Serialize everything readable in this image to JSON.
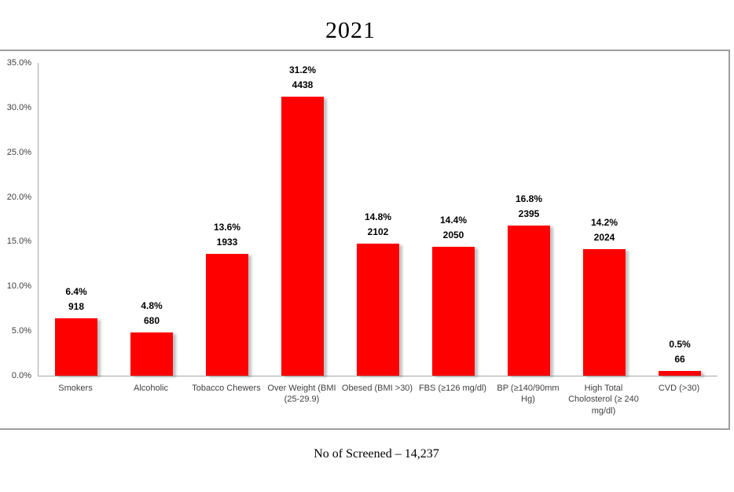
{
  "page": {
    "title": "2021",
    "footer": "No of Screened – 14,237"
  },
  "chart_data": {
    "type": "bar",
    "title": "2021",
    "categories": [
      "Smokers",
      "Alcoholic",
      "Tobacco Chewers",
      "Over Weight (BMI (25-29.9)",
      "Obesed (BMI >30)",
      "FBS (≥126 mg/dl)",
      "BP (≥140/90mm Hg)",
      "High Total Cholosterol (≥ 240 mg/dl)",
      "CVD (>30)"
    ],
    "values": [
      6.4,
      4.8,
      13.6,
      31.2,
      14.8,
      14.4,
      16.8,
      14.2,
      0.5
    ],
    "value_labels": [
      "6.4%",
      "4.8%",
      "13.6%",
      "31.2%",
      "14.8%",
      "14.4%",
      "16.8%",
      "14.2%",
      "0.5%"
    ],
    "counts": [
      "918",
      "680",
      "1933",
      "4438",
      "2102",
      "2050",
      "2395",
      "2024",
      "66"
    ],
    "series": [
      {
        "name": "2021",
        "values": [
          6.4,
          4.8,
          13.6,
          31.2,
          14.8,
          14.4,
          16.8,
          14.2,
          0.5
        ]
      }
    ],
    "ylim": [
      0,
      35
    ],
    "ytick_step": 5,
    "ytick_labels": [
      "0.0%",
      "5.0%",
      "10.0%",
      "15.0%",
      "20.0%",
      "25.0%",
      "30.0%",
      "35.0%"
    ],
    "grid": false,
    "legend": "none",
    "bar_color": "#FF0000",
    "xlabel": "",
    "ylabel": "",
    "footer": "No of Screened – 14,237"
  }
}
